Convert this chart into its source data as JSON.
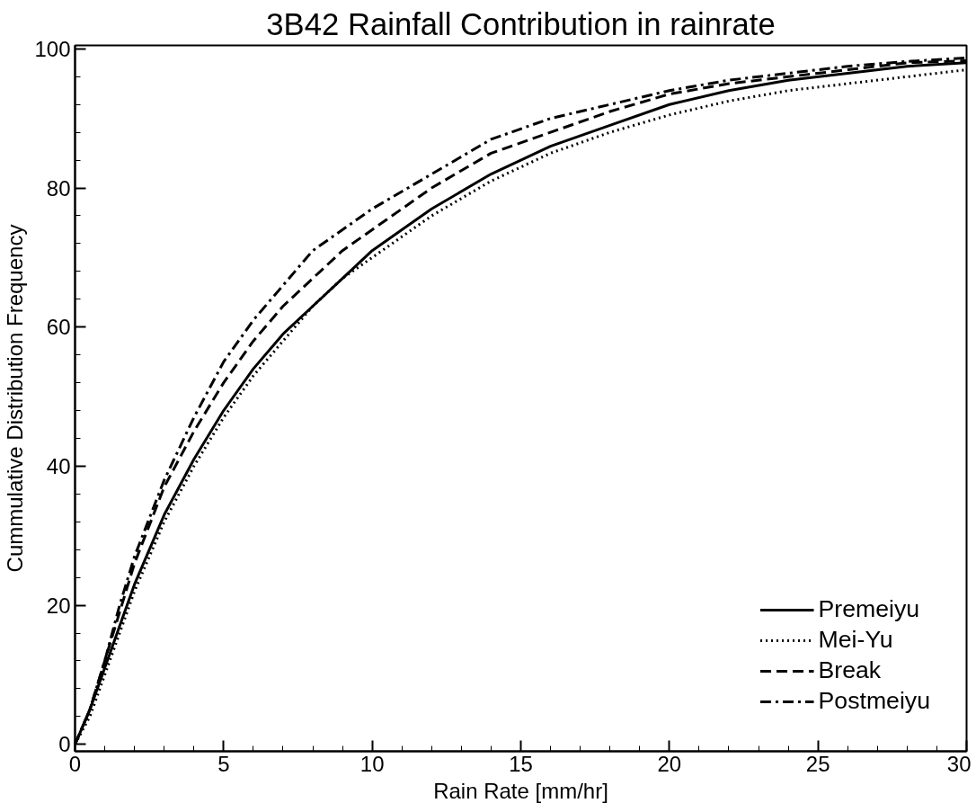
{
  "chart_data": {
    "type": "line",
    "title": "3B42 Rainfall Contribution in rainrate",
    "xlabel": "Rain Rate [mm/hr]",
    "ylabel": "Cummulative Distribution Frequency",
    "x": [
      0,
      0.5,
      1,
      1.5,
      2,
      3,
      4,
      5,
      6,
      7,
      8,
      9,
      10,
      12,
      14,
      16,
      18,
      20,
      22,
      24,
      26,
      28,
      30
    ],
    "series": [
      {
        "name": "Premeiyu",
        "color": "#000000",
        "line_style": "solid",
        "values": [
          0,
          5,
          11,
          17,
          23,
          33,
          41,
          48,
          54,
          59,
          63,
          67,
          71,
          77,
          82,
          86,
          89,
          92,
          94,
          95.5,
          96.5,
          97.5,
          98
        ]
      },
      {
        "name": "Mei-Yu",
        "color": "#000000",
        "line_style": "dotted",
        "values": [
          0,
          4,
          10,
          16,
          22,
          32,
          40,
          47,
          53,
          58,
          63,
          67,
          70,
          76,
          81,
          85,
          88,
          90.5,
          92.5,
          94,
          95,
          96,
          97
        ]
      },
      {
        "name": "Break",
        "color": "#000000",
        "line_style": "dashed",
        "values": [
          0,
          5,
          12,
          19,
          26,
          37,
          45,
          52,
          58,
          63,
          67,
          71,
          74,
          80,
          85,
          88,
          91,
          93.5,
          95,
          96,
          97,
          98,
          98.3
        ]
      },
      {
        "name": "Postmeiyu",
        "color": "#000000",
        "line_style": "dashdot",
        "values": [
          0,
          5,
          12,
          20,
          27,
          38,
          47,
          55,
          61,
          66,
          71,
          74,
          77,
          82,
          87,
          90,
          92,
          94,
          95.5,
          96.5,
          97.5,
          98.2,
          98.7
        ]
      }
    ],
    "xlim": [
      0,
      30
    ],
    "ylim": [
      -1,
      100.5
    ],
    "xticks": [
      0,
      5,
      10,
      15,
      20,
      25,
      30
    ],
    "yticks": [
      0,
      20,
      40,
      60,
      80,
      100
    ],
    "grid": false,
    "legend": "bottom right",
    "marker": "none"
  }
}
